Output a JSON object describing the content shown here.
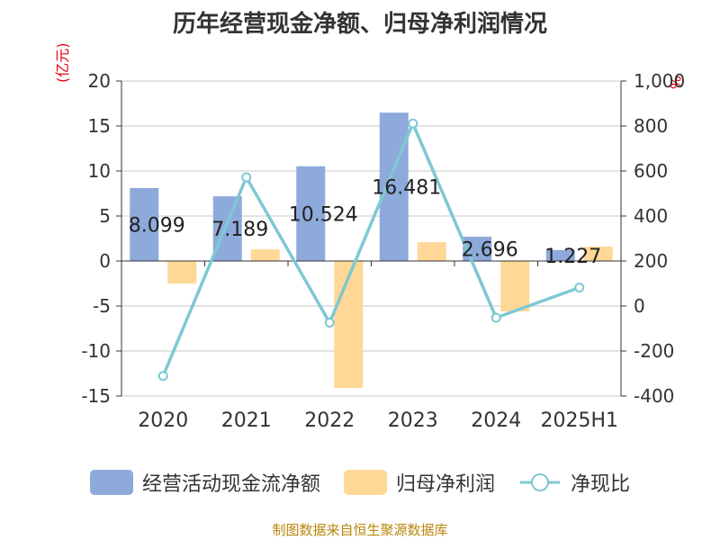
{
  "page": {
    "title": "历年经营现金净额、归母净利润情况",
    "unit_left": "(亿元)",
    "unit_right": "%",
    "source": "制图数据来自恒生聚源数据库"
  },
  "colors": {
    "bar_ocf": "#8eaadb",
    "bar_np": "#ffd898",
    "line": "#7ec8d3",
    "grid": "#c8c8c8",
    "axis_text": "#333333",
    "accent_red": "#e60012"
  },
  "chart_data": {
    "type": "bar",
    "categories": [
      "2020",
      "2021",
      "2022",
      "2023",
      "2024",
      "2025H1"
    ],
    "left_axis": {
      "min": -15,
      "max": 20,
      "ticks": [
        "-15",
        "-10",
        "-5",
        "0",
        "5",
        "10",
        "15",
        "20"
      ]
    },
    "right_axis": {
      "min": -400,
      "max": 1000,
      "ticks": [
        "-400",
        "-200",
        "0",
        "200",
        "400",
        "600",
        "800",
        "1,000"
      ]
    },
    "series": [
      {
        "name": "经营活动现金流净额",
        "type": "bar",
        "axis": "left",
        "values": [
          8.099,
          7.189,
          10.524,
          16.481,
          2.696,
          1.227
        ],
        "labels": [
          "8.099",
          "7.189",
          "10.524",
          "16.481",
          "2.696",
          "1.227"
        ]
      },
      {
        "name": "归母净利润",
        "type": "bar",
        "axis": "left",
        "values": [
          -2.5,
          1.3,
          -14.1,
          2.1,
          -5.6,
          1.6
        ]
      },
      {
        "name": "净现比",
        "type": "line",
        "axis": "right",
        "values": [
          -311,
          572,
          -74,
          811,
          -52,
          82
        ]
      }
    ],
    "legend_position": "bottom",
    "grid": true
  }
}
